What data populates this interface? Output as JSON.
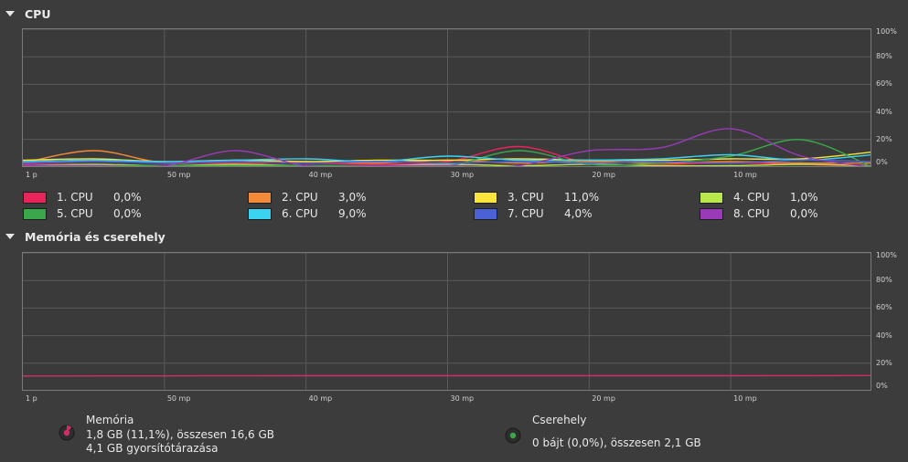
{
  "cpu_section": {
    "title": "CPU",
    "cpus": [
      {
        "label": "1. CPU",
        "value": "0,0%",
        "color": "#e8245b"
      },
      {
        "label": "2. CPU",
        "value": "3,0%",
        "color": "#f28a3a"
      },
      {
        "label": "3. CPU",
        "value": "11,0%",
        "color": "#fce53a"
      },
      {
        "label": "4. CPU",
        "value": "1,0%",
        "color": "#b8e84a"
      },
      {
        "label": "5. CPU",
        "value": "0,0%",
        "color": "#3aa84a"
      },
      {
        "label": "6. CPU",
        "value": "9,0%",
        "color": "#3ad4f2"
      },
      {
        "label": "7. CPU",
        "value": "4,0%",
        "color": "#4a62d6"
      },
      {
        "label": "8. CPU",
        "value": "0,0%",
        "color": "#9a3ab8"
      }
    ]
  },
  "memory_section": {
    "title": "Memória és cserehely",
    "memory": {
      "label": "Memória",
      "usage": "1,8 GB (11,1%), összesen 16,6 GB",
      "cache": "4,1 GB gyorsítótárazása",
      "color": "#d42c6a"
    },
    "swap": {
      "label": "Cserehely",
      "usage": "0 bájt (0,0%), összesen 2,1 GB",
      "color": "#3aa84a"
    }
  },
  "y_ticks": [
    "100%",
    "80%",
    "60%",
    "40%",
    "20%",
    "0%"
  ],
  "x_ticks": [
    "1 p",
    "50 mp",
    "40 mp",
    "30 mp",
    "20 mp",
    "10 mp"
  ],
  "chart_data": [
    {
      "type": "line",
      "title": "CPU",
      "ylim": [
        0,
        100
      ],
      "x": [
        60,
        55,
        50,
        45,
        40,
        35,
        30,
        25,
        20,
        15,
        10,
        5,
        0
      ],
      "x_tick_labels": [
        "1 p",
        "50 mp",
        "40 mp",
        "30 mp",
        "20 mp",
        "10 mp"
      ],
      "y_tick_labels": [
        "100%",
        "80%",
        "60%",
        "40%",
        "20%",
        "0%"
      ],
      "grid": true,
      "series": [
        {
          "name": "1. CPU",
          "values": [
            2,
            4,
            3,
            3,
            3,
            2,
            4,
            15,
            3,
            2,
            3,
            2,
            0
          ]
        },
        {
          "name": "2. CPU",
          "values": [
            3,
            12,
            3,
            5,
            4,
            3,
            5,
            3,
            4,
            3,
            4,
            3,
            3
          ]
        },
        {
          "name": "3. CPU",
          "values": [
            5,
            6,
            4,
            5,
            4,
            5,
            5,
            6,
            5,
            5,
            6,
            6,
            11
          ]
        },
        {
          "name": "4. CPU",
          "values": [
            1,
            2,
            1,
            2,
            1,
            1,
            2,
            1,
            2,
            1,
            1,
            2,
            1
          ]
        },
        {
          "name": "5. CPU",
          "values": [
            1,
            1,
            1,
            1,
            1,
            1,
            1,
            12,
            2,
            3,
            8,
            20,
            0
          ]
        },
        {
          "name": "6. CPU",
          "values": [
            4,
            5,
            4,
            5,
            6,
            4,
            8,
            5,
            5,
            6,
            9,
            5,
            9
          ]
        },
        {
          "name": "7. CPU",
          "values": [
            3,
            4,
            3,
            4,
            3,
            4,
            3,
            4,
            3,
            4,
            3,
            5,
            4
          ]
        },
        {
          "name": "8. CPU",
          "values": [
            1,
            1,
            1,
            12,
            1,
            1,
            1,
            1,
            12,
            14,
            28,
            8,
            0
          ]
        }
      ]
    },
    {
      "type": "line",
      "title": "Memória és cserehely",
      "ylim": [
        0,
        100
      ],
      "x": [
        60,
        50,
        40,
        30,
        20,
        10,
        0
      ],
      "x_tick_labels": [
        "1 p",
        "50 mp",
        "40 mp",
        "30 mp",
        "20 mp",
        "10 mp"
      ],
      "y_tick_labels": [
        "100%",
        "80%",
        "60%",
        "40%",
        "20%",
        "0%"
      ],
      "grid": true,
      "series": [
        {
          "name": "Memória",
          "values": [
            10.8,
            10.9,
            11.0,
            11.0,
            11.0,
            11.0,
            11.1
          ]
        },
        {
          "name": "Cserehely",
          "values": [
            0,
            0,
            0,
            0,
            0,
            0,
            0
          ]
        }
      ]
    }
  ]
}
